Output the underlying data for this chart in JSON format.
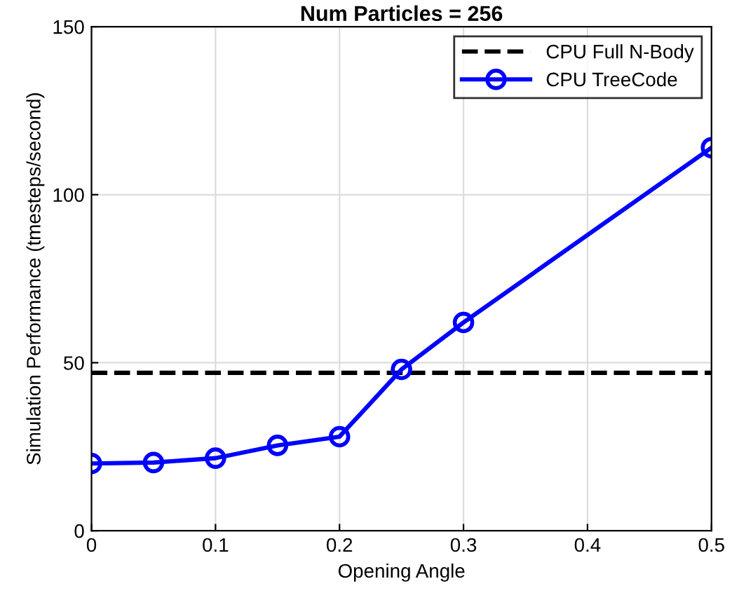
{
  "chart_data": {
    "type": "line",
    "title": "Num Particles = 256",
    "xlabel": "Opening Angle",
    "ylabel": "Simulation Performance (tmesteps/second)",
    "series": [
      {
        "name": "CPU Full N-Body",
        "color": "#000000",
        "x": [
          0,
          0.5
        ],
        "values": [
          47,
          47
        ],
        "line_style": "dashed",
        "marker": "none"
      },
      {
        "name": "CPU TreeCode",
        "color": "#0000ff",
        "x": [
          0,
          0.05,
          0.1,
          0.15,
          0.2,
          0.25,
          0.3,
          0.5
        ],
        "values": [
          20,
          20.3,
          21.6,
          25.4,
          28,
          48,
          62,
          114
        ],
        "line_style": "solid",
        "marker": "circle"
      }
    ],
    "xlim": [
      0,
      0.5
    ],
    "xticks": [
      0,
      0.1,
      0.2,
      0.3,
      0.4,
      0.5
    ],
    "ylim": [
      0,
      150
    ],
    "yticks": [
      0,
      50,
      100,
      150
    ],
    "grid": true,
    "legend": "top right"
  }
}
